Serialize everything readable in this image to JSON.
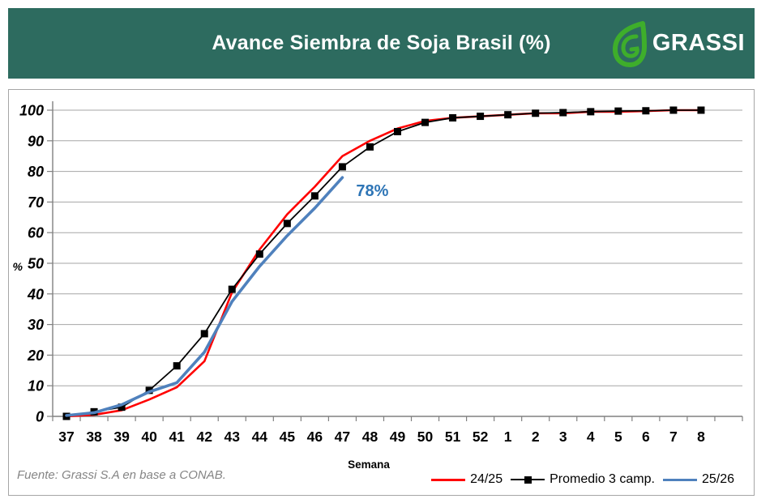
{
  "header": {
    "title": "Avance Siembra de Soja Brasil (%)",
    "brand": "GRASSI",
    "background_color": "#2D6B5F",
    "logo_green": "#3EAE2B"
  },
  "footer": {
    "source": "Fuente: Grassi S.A en base a CONAB."
  },
  "chart_data": {
    "type": "line",
    "title": "Avance Siembra de Soja Brasil (%)",
    "xlabel": "Semana",
    "ylabel": "%",
    "ylim": [
      0,
      100
    ],
    "y_ticks": [
      0,
      10,
      20,
      30,
      40,
      50,
      60,
      70,
      80,
      90,
      100
    ],
    "grid": true,
    "legend_position": "bottom-right",
    "categories": [
      "37",
      "38",
      "39",
      "40",
      "41",
      "42",
      "43",
      "44",
      "45",
      "46",
      "47",
      "48",
      "49",
      "50",
      "51",
      "52",
      "1",
      "2",
      "3",
      "4",
      "5",
      "6",
      "7",
      "8"
    ],
    "series": [
      {
        "name": "24/25",
        "color": "#FF0000",
        "stroke_width": 2.6,
        "marker": "none",
        "values": [
          0,
          0.5,
          2,
          5.5,
          9.5,
          18,
          40.5,
          54.5,
          66,
          75,
          85,
          90,
          94,
          96.5,
          97.5,
          98,
          98.5,
          99,
          99,
          99.5,
          99.5,
          99.7,
          100,
          100
        ]
      },
      {
        "name": "Promedio 3 camp.",
        "color": "#000000",
        "stroke_width": 1.8,
        "marker": "square",
        "values": [
          0,
          1.5,
          3,
          8.5,
          16.5,
          27,
          41.5,
          53,
          63,
          72,
          81.5,
          88,
          93,
          96,
          97.5,
          98,
          98.5,
          99,
          99.2,
          99.5,
          99.7,
          99.8,
          100,
          100
        ]
      },
      {
        "name": "25/26",
        "color": "#4F81BD",
        "stroke_width": 3.6,
        "marker": "none",
        "values": [
          0.3,
          1.2,
          3.8,
          8,
          11,
          21,
          37.5,
          49,
          59,
          68,
          78
        ]
      }
    ],
    "annotation": {
      "text": "78%",
      "color": "#2E75B6",
      "series": "25/26",
      "at_category": "47",
      "value": 78
    },
    "axis_color": "#808080",
    "grid_color": "#a6a6a6"
  }
}
